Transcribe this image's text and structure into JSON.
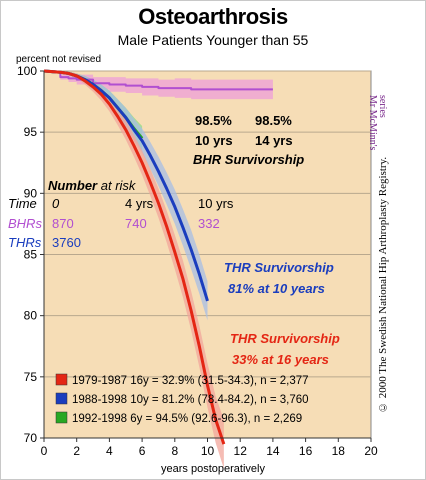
{
  "chart_data": {
    "type": "line",
    "title": "Osteoarthrosis",
    "subtitle": "Male Patients Younger than 55",
    "ylabel": "percent not revised",
    "xlabel": "years postoperatively",
    "xlim": [
      0,
      20
    ],
    "ylim": [
      70,
      100
    ],
    "xticks": [
      "0",
      "2",
      "4",
      "6",
      "8",
      "10",
      "12",
      "14",
      "16",
      "18",
      "20"
    ],
    "yticks": [
      "70",
      "75",
      "80",
      "85",
      "90",
      "95",
      "100"
    ],
    "background_color": "#f6ddb6",
    "grid": "horizontal",
    "series": [
      {
        "name": "BHRs",
        "color": "#b14fd0",
        "band_color": "#ee9ed8",
        "x": [
          0,
          0.5,
          1,
          1.5,
          2,
          3,
          4,
          5,
          6,
          7,
          8,
          9,
          10,
          11,
          12,
          13,
          14
        ],
        "y": [
          100,
          99.9,
          99.5,
          99.4,
          99.3,
          99.0,
          98.9,
          98.8,
          98.7,
          98.6,
          98.6,
          98.5,
          98.5,
          98.5,
          98.5,
          98.5,
          98.5
        ],
        "ci_half_width": [
          0.0,
          0.1,
          0.2,
          0.3,
          0.4,
          0.5,
          0.6,
          0.6,
          0.7,
          0.7,
          0.8,
          0.8,
          0.8,
          0.8,
          0.8,
          0.8,
          0.8
        ]
      },
      {
        "name": "1992-1998",
        "color": "#27a822",
        "band_color": "#8fdd86",
        "x": [
          0,
          0.5,
          1,
          1.5,
          2,
          2.5,
          3,
          3.5,
          4,
          4.5,
          5,
          5.5,
          6
        ],
        "y": [
          100,
          99.95,
          99.9,
          99.8,
          99.6,
          99.3,
          98.9,
          98.4,
          97.8,
          97.0,
          96.2,
          95.3,
          94.5
        ],
        "ci_half_width": [
          0.0,
          0.05,
          0.1,
          0.15,
          0.2,
          0.3,
          0.4,
          0.5,
          0.6,
          0.7,
          0.8,
          0.9,
          1.0
        ]
      },
      {
        "name": "1988-1998",
        "color": "#1a3dbe",
        "band_color": "#a7bde4",
        "x": [
          0,
          0.5,
          1,
          1.5,
          2,
          2.5,
          3,
          3.5,
          4,
          4.5,
          5,
          5.5,
          6,
          6.5,
          7,
          7.5,
          8,
          8.5,
          9,
          9.5,
          10
        ],
        "y": [
          100,
          99.95,
          99.9,
          99.8,
          99.6,
          99.3,
          98.9,
          98.4,
          97.8,
          97.0,
          96.2,
          95.2,
          94.3,
          93.1,
          91.8,
          90.4,
          88.9,
          87.2,
          85.4,
          83.4,
          81.2
        ],
        "ci_half_width": [
          0.0,
          0.05,
          0.1,
          0.15,
          0.2,
          0.3,
          0.4,
          0.5,
          0.6,
          0.7,
          0.8,
          0.9,
          1.0,
          1.1,
          1.2,
          1.3,
          1.4,
          1.5,
          1.6,
          1.6,
          1.6
        ]
      },
      {
        "name": "1979-1987",
        "color": "#e42614",
        "band_color": "#f1a59b",
        "x": [
          0,
          0.5,
          1,
          1.5,
          2,
          2.5,
          3,
          3.5,
          4,
          4.5,
          5,
          5.5,
          6,
          6.5,
          7,
          7.5,
          8,
          8.5,
          9,
          9.5,
          10,
          10.5,
          11
        ],
        "y": [
          100,
          99.95,
          99.9,
          99.8,
          99.6,
          99.2,
          98.7,
          98.1,
          97.3,
          96.3,
          95.2,
          93.9,
          92.5,
          90.9,
          89.2,
          87.3,
          85.2,
          83.0,
          80.4,
          77.5,
          74.3,
          71.5,
          69.5
        ],
        "ci_half_width": [
          0.0,
          0.05,
          0.1,
          0.15,
          0.2,
          0.3,
          0.4,
          0.5,
          0.6,
          0.7,
          0.8,
          0.9,
          1.0,
          1.1,
          1.2,
          1.3,
          1.4,
          1.5,
          1.6,
          1.7,
          1.8,
          1.9,
          2.0
        ]
      }
    ],
    "annotations": {
      "bhr_values": [
        "98.5%",
        "98.5%"
      ],
      "bhr_years": [
        "10 yrs",
        "14 yrs"
      ],
      "bhr_label": "BHR Survivorship",
      "thr_blue_line1": "THR Survivorship",
      "thr_blue_line2": "81% at 10 years",
      "thr_red_line1": "THR Survivorship",
      "thr_red_line2": "33% at 16 years",
      "credit_line1": "Mr McMinn's",
      "credit_line2": "series",
      "source": "© 2000 The Swedish National Hip Arthroplasty Registry."
    },
    "risk_table": {
      "header_label": "Time",
      "title_bold": "Number",
      "title_rest": " at risk",
      "times": [
        "0",
        "4 yrs",
        "10 yrs"
      ],
      "rows": [
        {
          "label": "BHRs",
          "color": "#b14fd0",
          "values": [
            "870",
            "740",
            "332"
          ]
        },
        {
          "label": "THRs",
          "color": "#1a3dbe",
          "values": [
            "3760",
            "",
            ""
          ]
        }
      ]
    },
    "legend": {
      "placement": "bottom-left",
      "entries": [
        {
          "color": "#e42614",
          "text": "1979-1987   16y = 32.9% (31.5-34.3), n = 2,377"
        },
        {
          "color": "#1a3dbe",
          "text": "1988-1998   10y = 81.2% (78.4-84.2), n = 3,760"
        },
        {
          "color": "#27a822",
          "text": "1992-1998     6y = 94.5% (92.6-96.3), n = 2,269"
        }
      ]
    }
  }
}
